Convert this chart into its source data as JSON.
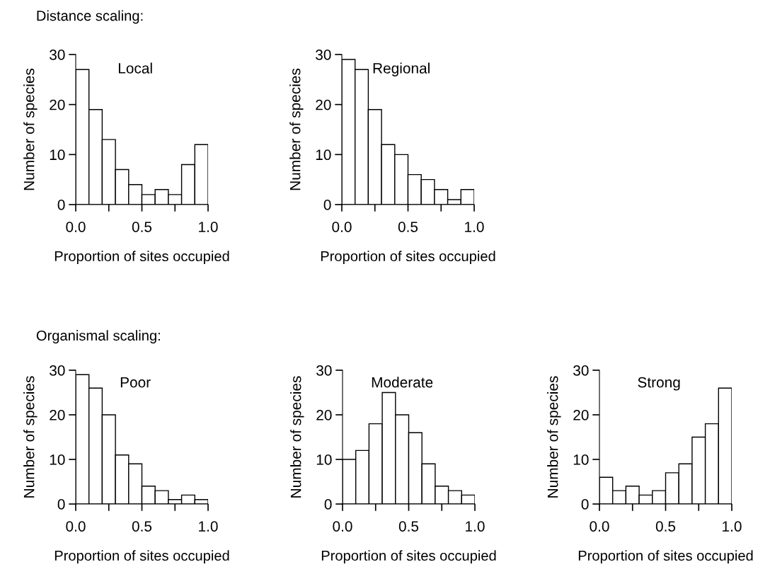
{
  "chart_data": [
    {
      "type": "histogram",
      "title": "Local",
      "annotations": [
        "Distance scaling:"
      ],
      "xlabel": "Proportion of sites occupied",
      "ylabel": "Number of species",
      "bins": [
        0,
        0.1,
        0.2,
        0.3,
        0.4,
        0.5,
        0.6,
        0.7,
        0.8,
        0.9,
        1.0
      ],
      "values": [
        27,
        19,
        13,
        7,
        4,
        2,
        3,
        2,
        8,
        12
      ],
      "color": "#ffffff",
      "xlim": [
        0,
        1
      ],
      "xticks": [
        {
          "value": 0,
          "label": "0.0"
        },
        {
          "value": 0.25,
          "label": null
        },
        {
          "value": 0.5,
          "label": "0.5"
        },
        {
          "value": 0.75,
          "label": null
        },
        {
          "value": 1,
          "label": "1.0"
        }
      ],
      "ylim": [
        0,
        30
      ],
      "yticks": [
        0,
        10,
        20,
        30
      ],
      "grid": false,
      "legend": false
    },
    {
      "type": "histogram",
      "title": "Regional",
      "xlabel": "Proportion of sites occupied",
      "ylabel": "Number of species",
      "bins": [
        0,
        0.1,
        0.2,
        0.3,
        0.4,
        0.5,
        0.6,
        0.7,
        0.8,
        0.9,
        1.0
      ],
      "values": [
        29,
        27,
        19,
        12,
        10,
        6,
        5,
        3,
        1,
        3
      ],
      "color": "#ffffff",
      "xlim": [
        0,
        1
      ],
      "xticks": [
        {
          "value": 0,
          "label": "0.0"
        },
        {
          "value": 0.25,
          "label": null
        },
        {
          "value": 0.5,
          "label": "0.5"
        },
        {
          "value": 0.75,
          "label": null
        },
        {
          "value": 1,
          "label": "1.0"
        }
      ],
      "ylim": [
        0,
        30
      ],
      "yticks": [
        0,
        10,
        20,
        30
      ],
      "grid": false,
      "legend": false
    },
    {
      "type": "histogram",
      "title": "Poor",
      "annotations": [
        "Organismal scaling:"
      ],
      "xlabel": "Proportion of sites occupied",
      "ylabel": "Number of species",
      "bins": [
        0,
        0.1,
        0.2,
        0.3,
        0.4,
        0.5,
        0.6,
        0.7,
        0.8,
        0.9,
        1.0
      ],
      "values": [
        29,
        26,
        20,
        11,
        9,
        4,
        3,
        1,
        2,
        1
      ],
      "color": "#ffffff",
      "xlim": [
        0,
        1
      ],
      "xticks": [
        {
          "value": 0,
          "label": "0.0"
        },
        {
          "value": 0.25,
          "label": null
        },
        {
          "value": 0.5,
          "label": "0.5"
        },
        {
          "value": 0.75,
          "label": null
        },
        {
          "value": 1,
          "label": "1.0"
        }
      ],
      "ylim": [
        0,
        30
      ],
      "yticks": [
        0,
        10,
        20,
        30
      ],
      "grid": false,
      "legend": false
    },
    {
      "type": "histogram",
      "title": "Moderate",
      "xlabel": "Proportion of sites occupied",
      "ylabel": "Number of species",
      "bins": [
        0,
        0.1,
        0.2,
        0.3,
        0.4,
        0.5,
        0.6,
        0.7,
        0.8,
        0.9,
        1.0
      ],
      "values": [
        10,
        12,
        18,
        25,
        20,
        16,
        9,
        4,
        3,
        2
      ],
      "color": "#ffffff",
      "xlim": [
        0,
        1
      ],
      "xticks": [
        {
          "value": 0,
          "label": "0.0"
        },
        {
          "value": 0.25,
          "label": null
        },
        {
          "value": 0.5,
          "label": "0.5"
        },
        {
          "value": 0.75,
          "label": null
        },
        {
          "value": 1,
          "label": "1.0"
        }
      ],
      "ylim": [
        0,
        30
      ],
      "yticks": [
        0,
        10,
        20,
        30
      ],
      "grid": false,
      "legend": false
    },
    {
      "type": "histogram",
      "title": "Strong",
      "xlabel": "Proportion of sites occupied",
      "ylabel": "Number of species",
      "bins": [
        0,
        0.1,
        0.2,
        0.3,
        0.4,
        0.5,
        0.6,
        0.7,
        0.8,
        0.9,
        1.0
      ],
      "values": [
        6,
        3,
        4,
        2,
        3,
        7,
        9,
        15,
        18,
        26
      ],
      "color": "#ffffff",
      "xlim": [
        0,
        1
      ],
      "xticks": [
        {
          "value": 0,
          "label": "0.0"
        },
        {
          "value": 0.25,
          "label": null
        },
        {
          "value": 0.5,
          "label": "0.5"
        },
        {
          "value": 0.75,
          "label": null
        },
        {
          "value": 1,
          "label": "1.0"
        }
      ],
      "ylim": [
        0,
        30
      ],
      "yticks": [
        0,
        10,
        20,
        30
      ],
      "grid": false,
      "legend": false
    }
  ]
}
